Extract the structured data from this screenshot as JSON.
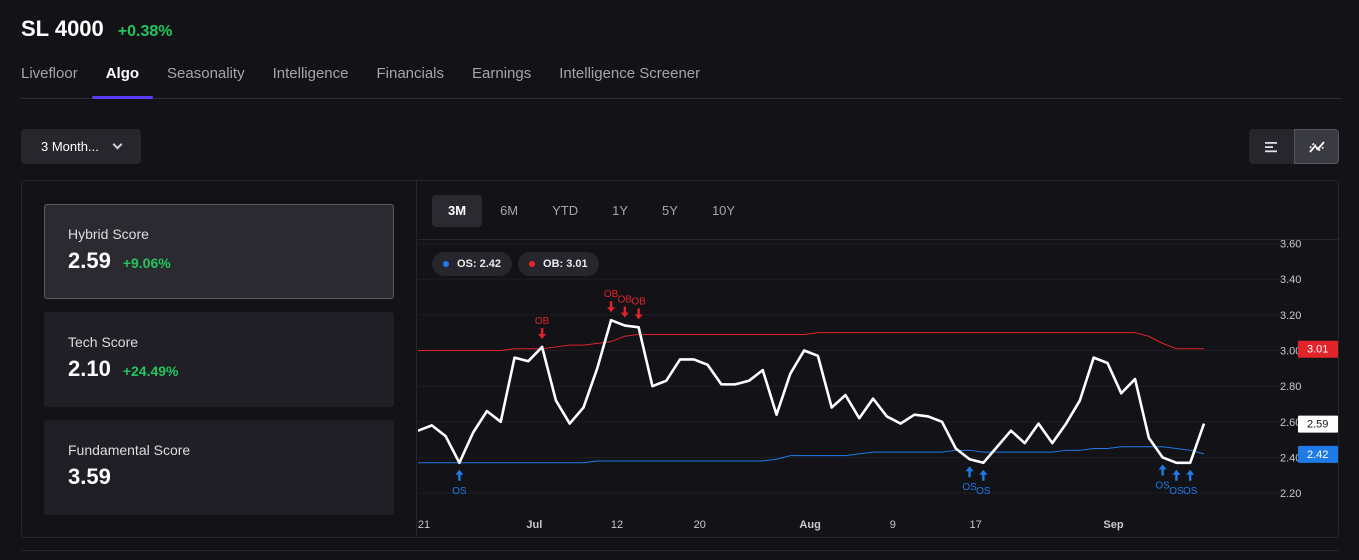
{
  "header": {
    "ticker": "SL 4000",
    "change": "+0.38%"
  },
  "tabs": [
    {
      "label": "Livefloor",
      "active": false
    },
    {
      "label": "Algo",
      "active": true
    },
    {
      "label": "Seasonality",
      "active": false
    },
    {
      "label": "Intelligence",
      "active": false
    },
    {
      "label": "Financials",
      "active": false
    },
    {
      "label": "Earnings",
      "active": false
    },
    {
      "label": "Intelligence Screener",
      "active": false
    }
  ],
  "period_select": {
    "value": "3 Month..."
  },
  "view_toggle": {
    "icons": [
      "list-icon",
      "chart-line-icon"
    ],
    "active": "chart-line-icon"
  },
  "scores": [
    {
      "label": "Hybrid Score",
      "value": "2.59",
      "delta": "+9.06%",
      "selected": true
    },
    {
      "label": "Tech Score",
      "value": "2.10",
      "delta": "+24.49%",
      "selected": false
    },
    {
      "label": "Fundamental Score",
      "value": "3.59",
      "delta": "",
      "selected": false
    }
  ],
  "range_tabs": [
    "3M",
    "6M",
    "YTD",
    "1Y",
    "5Y",
    "10Y"
  ],
  "range_active": "3M",
  "legend": {
    "os": {
      "label": "OS: 2.42",
      "color": "#1e7be8"
    },
    "ob": {
      "label": "OB: 3.01",
      "color": "#e0242a"
    }
  },
  "chart_data": {
    "type": "line",
    "y_ticks": [
      "3.60",
      "3.40",
      "3.20",
      "3.00",
      "2.80",
      "2.60",
      "2.40",
      "2.20"
    ],
    "y_tick_values": [
      3.6,
      3.4,
      3.2,
      3.0,
      2.8,
      2.6,
      2.4,
      2.2
    ],
    "ylim": [
      2.15,
      3.62
    ],
    "x_tick_labels": [
      {
        "label": "21",
        "bold": false,
        "i": 0
      },
      {
        "label": "Jul",
        "bold": true,
        "i": 8
      },
      {
        "label": "12",
        "bold": false,
        "i": 14
      },
      {
        "label": "20",
        "bold": false,
        "i": 20
      },
      {
        "label": "Aug",
        "bold": true,
        "i": 28
      },
      {
        "label": "9",
        "bold": false,
        "i": 34
      },
      {
        "label": "17",
        "bold": false,
        "i": 40
      },
      {
        "label": "Sep",
        "bold": true,
        "i": 50
      }
    ],
    "n_points": 58,
    "series": [
      {
        "name": "Hybrid Score",
        "color": "#ffffff",
        "values": [
          2.55,
          2.58,
          2.52,
          2.37,
          2.54,
          2.66,
          2.6,
          2.96,
          2.94,
          3.02,
          2.72,
          2.59,
          2.68,
          2.9,
          3.17,
          3.14,
          3.13,
          2.8,
          2.83,
          2.95,
          2.95,
          2.92,
          2.81,
          2.81,
          2.83,
          2.89,
          2.64,
          2.87,
          3.0,
          2.97,
          2.68,
          2.75,
          2.62,
          2.73,
          2.63,
          2.59,
          2.64,
          2.63,
          2.6,
          2.45,
          2.39,
          2.37,
          2.46,
          2.55,
          2.48,
          2.59,
          2.48,
          2.59,
          2.72,
          2.96,
          2.93,
          2.76,
          2.84,
          2.51,
          2.4,
          2.37,
          2.37,
          2.59
        ]
      },
      {
        "name": "OB",
        "color": "#e0242a",
        "values": [
          3.0,
          3.0,
          3.0,
          3.0,
          3.0,
          3.0,
          3.0,
          3.01,
          3.01,
          3.01,
          3.02,
          3.03,
          3.03,
          3.04,
          3.05,
          3.08,
          3.09,
          3.09,
          3.09,
          3.09,
          3.09,
          3.09,
          3.09,
          3.09,
          3.09,
          3.09,
          3.09,
          3.09,
          3.09,
          3.1,
          3.1,
          3.1,
          3.1,
          3.1,
          3.1,
          3.1,
          3.1,
          3.1,
          3.1,
          3.1,
          3.1,
          3.1,
          3.1,
          3.1,
          3.1,
          3.1,
          3.1,
          3.1,
          3.1,
          3.1,
          3.1,
          3.1,
          3.1,
          3.08,
          3.04,
          3.01,
          3.01,
          3.01
        ]
      },
      {
        "name": "OS",
        "color": "#1e7be8",
        "values": [
          2.37,
          2.37,
          2.37,
          2.37,
          2.37,
          2.37,
          2.37,
          2.37,
          2.37,
          2.37,
          2.37,
          2.37,
          2.37,
          2.38,
          2.38,
          2.38,
          2.38,
          2.38,
          2.38,
          2.38,
          2.38,
          2.38,
          2.38,
          2.38,
          2.38,
          2.38,
          2.39,
          2.41,
          2.41,
          2.41,
          2.41,
          2.41,
          2.42,
          2.43,
          2.43,
          2.43,
          2.43,
          2.43,
          2.43,
          2.44,
          2.44,
          2.43,
          2.43,
          2.43,
          2.43,
          2.43,
          2.43,
          2.44,
          2.44,
          2.45,
          2.45,
          2.46,
          2.46,
          2.46,
          2.46,
          2.45,
          2.44,
          2.42
        ]
      }
    ],
    "signals": [
      {
        "type": "OS",
        "i": 3,
        "label": "OS"
      },
      {
        "type": "OB",
        "i": 9,
        "label": "OB"
      },
      {
        "type": "OB",
        "i": 14,
        "label": "OB"
      },
      {
        "type": "OB",
        "i": 15,
        "label": "OB"
      },
      {
        "type": "OB",
        "i": 16,
        "label": "OB"
      },
      {
        "type": "OS",
        "i": 40,
        "label": "OS"
      },
      {
        "type": "OS",
        "i": 41,
        "label": "OS"
      },
      {
        "type": "OS",
        "i": 54,
        "label": "OS"
      },
      {
        "type": "OS",
        "i": 55,
        "label": "OS"
      },
      {
        "type": "OS",
        "i": 56,
        "label": "OS"
      }
    ],
    "price_tags": [
      {
        "label": "3.01",
        "value": 3.01,
        "bg": "#e0242a",
        "fg": "#ffffff"
      },
      {
        "label": "2.59",
        "value": 2.59,
        "bg": "#ffffff",
        "fg": "#121217"
      },
      {
        "label": "2.42",
        "value": 2.42,
        "bg": "#1e7be8",
        "fg": "#ffffff"
      }
    ]
  }
}
